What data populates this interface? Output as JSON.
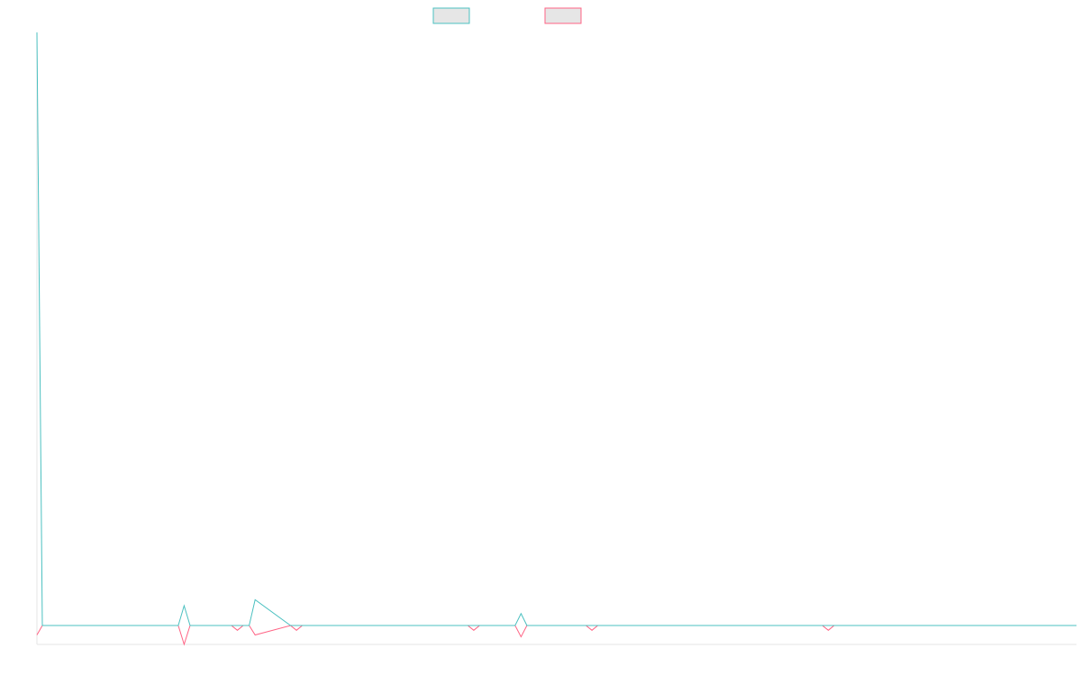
{
  "chart_data": {
    "type": "line",
    "title": "",
    "xlabel": "",
    "ylabel": "",
    "ylim": [
      -1,
      30
    ],
    "xlim": [
      0,
      176
    ],
    "grid": false,
    "legend_placement": "top-center",
    "series": [
      {
        "color": "#4bc0c0",
        "x": [
          0,
          1,
          24,
          25,
          26,
          33,
          34,
          35,
          36,
          37,
          43,
          44,
          45,
          73,
          74,
          75,
          81,
          82,
          83,
          93,
          94,
          95,
          133,
          134,
          135,
          176
        ],
        "values": [
          30,
          0,
          0,
          1,
          0,
          0,
          0,
          0,
          0,
          1.3,
          0,
          0,
          0,
          0,
          0,
          0,
          0,
          0.6,
          0,
          0,
          0,
          0,
          0,
          0,
          0,
          0
        ]
      },
      {
        "color": "#ff6384",
        "x": [
          0,
          1,
          24,
          25,
          26,
          33,
          34,
          35,
          36,
          37,
          43,
          44,
          45,
          73,
          74,
          75,
          81,
          82,
          83,
          93,
          94,
          95,
          133,
          134,
          135,
          176
        ],
        "values": [
          -0.5,
          0,
          0,
          -1,
          0,
          0,
          -0.25,
          0,
          0,
          -0.5,
          0,
          -0.25,
          0,
          0,
          -0.25,
          0,
          0,
          -0.6,
          0,
          0,
          -0.25,
          0,
          0,
          -0.25,
          0,
          0
        ]
      }
    ],
    "legend": [
      {
        "color": "#4bc0c0",
        "fill": "#e6e6e6"
      },
      {
        "color": "#ff6384",
        "fill": "#e6e6e6"
      }
    ]
  }
}
